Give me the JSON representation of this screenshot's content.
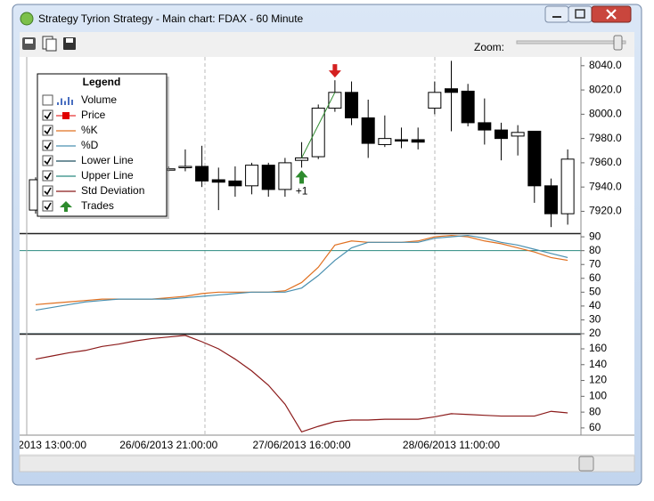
{
  "window": {
    "title": "Strategy Tyrion Strategy - Main chart: FDAX - 60 Minute",
    "zoom_label": "Zoom:"
  },
  "chart_data": [
    {
      "type": "candlestick",
      "categories": [
        null,
        "2013 13:00:00",
        null,
        null,
        null,
        null,
        null,
        null,
        "26/06/2013 21:00:00",
        null,
        null,
        null,
        null,
        null,
        null,
        null,
        "27/06/2013 16:00:00",
        null,
        null,
        null,
        null,
        null,
        null,
        null,
        null,
        "28/06/2013 11:00:00",
        null,
        null,
        null,
        null,
        null,
        null,
        null
      ],
      "open": [
        7921,
        7946,
        7939,
        7945,
        7950,
        7947,
        7953,
        7956,
        7955,
        7956,
        7957,
        7946,
        7945,
        7941,
        7958,
        7938,
        7962,
        7965,
        8005,
        8018,
        7997,
        7975,
        7979,
        7979,
        8005,
        8021,
        8019,
        7993,
        7987,
        7982,
        7986,
        7941,
        7918
      ],
      "high": [
        7948,
        7950,
        7950,
        7953,
        7955,
        7956,
        7959,
        7958,
        7957,
        7971,
        7974,
        7956,
        7957,
        7960,
        7960,
        7964,
        7977,
        8008,
        8028,
        8027,
        8012,
        7999,
        7989,
        7989,
        8027,
        8044,
        8025,
        8013,
        7993,
        7991,
        7986,
        7947,
        7971
      ],
      "low": [
        7918,
        7935,
        7936,
        7942,
        7944,
        7945,
        7950,
        7951,
        7953,
        7953,
        7940,
        7921,
        7932,
        7934,
        7932,
        7932,
        7956,
        7963,
        8002,
        7991,
        7964,
        7973,
        7972,
        7971,
        8000,
        7986,
        7990,
        7975,
        7962,
        7966,
        7927,
        7907,
        7909
      ],
      "close": [
        7946,
        7939,
        7945,
        7950,
        7947,
        7953,
        7956,
        7954,
        7955,
        7957,
        7945,
        7944,
        7941,
        7958,
        7938,
        7960,
        7964,
        8005,
        8018,
        7997,
        7976,
        7980,
        7978,
        7977,
        8018,
        8018,
        7993,
        7987,
        7980,
        7985,
        7941,
        7918,
        7963
      ],
      "up_color": "#ffffff",
      "down_color": "#000000",
      "ylim": [
        7902,
        8045
      ],
      "yticks": [
        {
          "value": 8040,
          "label": "8040.0"
        },
        {
          "value": 8020,
          "label": "8020.0"
        },
        {
          "value": 8000,
          "label": "8000.0"
        },
        {
          "value": 7980,
          "label": "7980.0"
        },
        {
          "value": 7960,
          "label": "7960.0"
        },
        {
          "value": 7940,
          "label": "7940.0"
        },
        {
          "value": 7920,
          "label": "7920.0"
        }
      ],
      "price": {
        "name": "Price",
        "color": "#e00000",
        "visible": true
      },
      "volume": {
        "name": "Volume",
        "color": "#4a6fc0",
        "visible": false
      },
      "trades": {
        "name": "Trades",
        "visible": true,
        "buy_color": "#2e8b2e",
        "sell_color": "#d42020",
        "entries": [
          {
            "bar": 16,
            "side": "buy",
            "price": 7964,
            "label": "+1"
          },
          {
            "bar": 18,
            "side": "sell",
            "price": 8018
          }
        ]
      },
      "legend": {
        "title": "Legend",
        "position": "upper left"
      }
    },
    {
      "type": "line",
      "series": [
        {
          "name": "%K",
          "color": "#e07020",
          "visible": true,
          "values": [
            41,
            42,
            43,
            44,
            45,
            45,
            45,
            45,
            46,
            47,
            49,
            50,
            50,
            50,
            50,
            51,
            57,
            68,
            84,
            87,
            86,
            86,
            86,
            87,
            90,
            91,
            90,
            87,
            85,
            82,
            79,
            75,
            73
          ]
        },
        {
          "name": "%D",
          "color": "#4a90b0",
          "visible": true,
          "values": [
            37,
            39,
            41,
            43,
            44,
            45,
            45,
            45,
            45,
            46,
            47,
            48,
            49,
            50,
            50,
            50,
            53,
            62,
            73,
            82,
            86,
            86,
            86,
            86,
            89,
            90,
            91,
            89,
            86,
            84,
            81,
            78,
            75
          ]
        }
      ],
      "hlines": [
        {
          "name": "Lower Line",
          "value": 20,
          "color": "#1f4f5f",
          "visible": true
        },
        {
          "name": "Upper Line",
          "value": 80,
          "color": "#2a8a80",
          "visible": true
        }
      ],
      "ylim": [
        20,
        92
      ],
      "yticks": [
        90,
        80,
        70,
        60,
        50,
        40,
        30,
        20
      ]
    },
    {
      "type": "line",
      "series": [
        {
          "name": "Std Deviation",
          "color": "#8b1a1a",
          "visible": true,
          "values": [
            147,
            151,
            155,
            158,
            163,
            166,
            170,
            173,
            175,
            177,
            169,
            160,
            147,
            132,
            114,
            90,
            55,
            62,
            68,
            70,
            70,
            71,
            71,
            71,
            74,
            78,
            77,
            76,
            75,
            75,
            75,
            81,
            79
          ]
        }
      ],
      "ylim": [
        52,
        178
      ],
      "yticks": [
        160,
        140,
        120,
        100,
        80,
        60
      ]
    }
  ]
}
